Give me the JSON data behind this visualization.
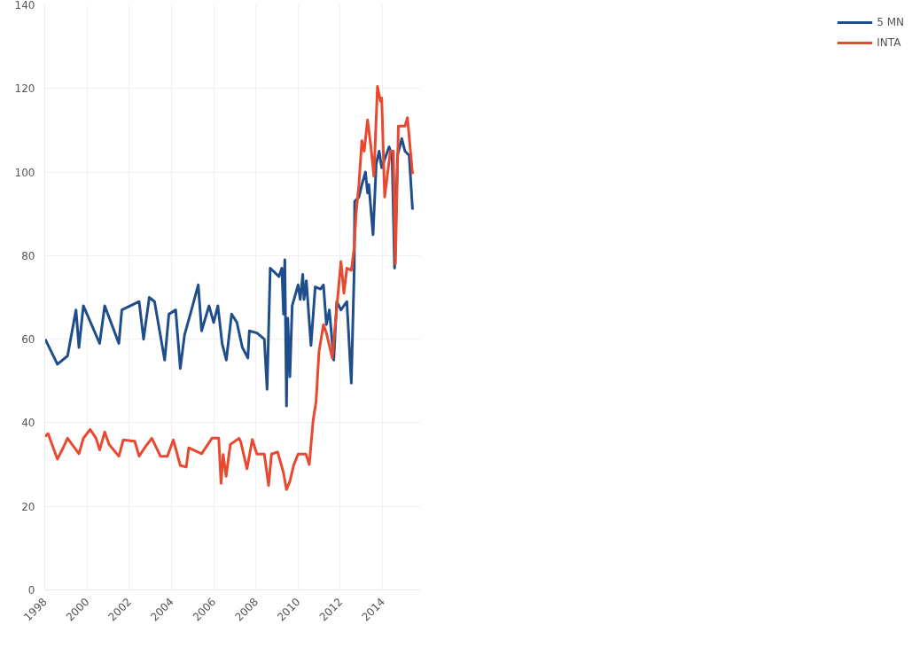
{
  "chart_data": {
    "type": "line",
    "xlim": [
      1998,
      2015.8
    ],
    "ylim": [
      0,
      140
    ],
    "xticks": [
      1998,
      2000,
      2002,
      2004,
      2006,
      2008,
      2010,
      2012,
      2014
    ],
    "yticks": [
      0,
      20,
      40,
      60,
      80,
      100,
      120,
      140
    ],
    "grid": true,
    "legend": "right",
    "line_style": "solid",
    "marker": "none",
    "series": [
      {
        "name": "5 MN",
        "color": "#1f4e8c",
        "x": [
          1998.02,
          1998.6,
          1999.08,
          1999.48,
          1999.62,
          1999.83,
          2000.0,
          2000.6,
          2000.84,
          2001.51,
          2001.65,
          2002.47,
          2002.68,
          2002.95,
          2003.2,
          2003.68,
          2003.88,
          2004.2,
          2004.42,
          2004.62,
          2004.95,
          2005.27,
          2005.43,
          2005.78,
          2006.0,
          2006.2,
          2006.4,
          2006.6,
          2006.85,
          2007.1,
          2007.36,
          2007.62,
          2007.69,
          2008.05,
          2008.4,
          2008.53,
          2008.68,
          2009.09,
          2009.23,
          2009.31,
          2009.37,
          2009.45,
          2009.51,
          2009.61,
          2009.72,
          2010.0,
          2010.1,
          2010.22,
          2010.28,
          2010.39,
          2010.61,
          2010.81,
          2011.06,
          2011.2,
          2011.34,
          2011.48,
          2011.69,
          2011.83,
          2012.03,
          2012.31,
          2012.52,
          2012.66,
          2012.68,
          2012.88,
          2013.02,
          2013.19,
          2013.29,
          2013.35,
          2013.55,
          2013.7,
          2013.84,
          2013.96,
          2014.31,
          2014.45,
          2014.57,
          2014.71,
          2014.91,
          2015.06,
          2015.26,
          2015.42
        ],
        "values": [
          60,
          54,
          56,
          67,
          58,
          68,
          66,
          59,
          68,
          59,
          67,
          69,
          60,
          70,
          69,
          55,
          66,
          67,
          53,
          61,
          67,
          73,
          62,
          68,
          64,
          68,
          59,
          55,
          66,
          64,
          58,
          55.5,
          62,
          61.5,
          60,
          48,
          77,
          75,
          77,
          66,
          79,
          44,
          65,
          51,
          68,
          73,
          69.5,
          75.5,
          69.5,
          74,
          58.5,
          72.5,
          72,
          73,
          63.5,
          67,
          55,
          69,
          67,
          69,
          49.5,
          77,
          93,
          94,
          97,
          100,
          95,
          97,
          85,
          102,
          105,
          101,
          106,
          104,
          77,
          104,
          108,
          105,
          104,
          91
        ]
      },
      {
        "name": "INTA",
        "color": "#e8492f",
        "x": [
          1998.02,
          1998.16,
          1998.6,
          1998.87,
          1999.08,
          1999.62,
          1999.83,
          2000.15,
          2000.43,
          2000.6,
          2000.84,
          2001.05,
          2001.51,
          2001.72,
          2002.26,
          2002.47,
          2002.73,
          2003.07,
          2003.48,
          2003.81,
          2004.09,
          2004.42,
          2004.7,
          2004.82,
          2005.43,
          2005.92,
          2006.24,
          2006.35,
          2006.45,
          2006.59,
          2006.79,
          2007.2,
          2007.28,
          2007.58,
          2007.83,
          2008.05,
          2008.4,
          2008.6,
          2008.74,
          2009.03,
          2009.31,
          2009.45,
          2009.61,
          2009.8,
          2010.0,
          2010.37,
          2010.53,
          2010.71,
          2010.85,
          2010.99,
          2011.2,
          2011.34,
          2011.62,
          2011.83,
          2012.03,
          2012.17,
          2012.31,
          2012.52,
          2012.66,
          2012.74,
          2012.88,
          2013.02,
          2013.13,
          2013.29,
          2013.45,
          2013.59,
          2013.76,
          2013.9,
          2013.96,
          2014.1,
          2014.37,
          2014.51,
          2014.61,
          2014.75,
          2015.06,
          2015.18,
          2015.42
        ],
        "values": [
          36.7,
          37.4,
          31.3,
          34,
          36.3,
          32.6,
          36.3,
          38.4,
          36.3,
          33.5,
          37.8,
          34.8,
          32,
          35.9,
          35.6,
          32,
          34,
          36.3,
          32,
          32,
          35.9,
          29.8,
          29.4,
          34,
          32.6,
          36.3,
          36.3,
          25.5,
          32.4,
          27.2,
          34.8,
          36.3,
          35.5,
          29,
          36,
          32.5,
          32.5,
          25,
          32.5,
          33,
          28,
          24,
          26,
          30,
          32.5,
          32.5,
          30,
          40.5,
          45,
          57,
          63.5,
          61.5,
          55.5,
          67.5,
          78.6,
          71,
          77,
          76.5,
          82,
          89.6,
          97,
          107.5,
          105,
          112.5,
          106,
          99,
          120.5,
          117,
          117.7,
          94,
          105,
          105,
          78,
          111,
          111,
          113,
          99.5
        ]
      }
    ]
  }
}
